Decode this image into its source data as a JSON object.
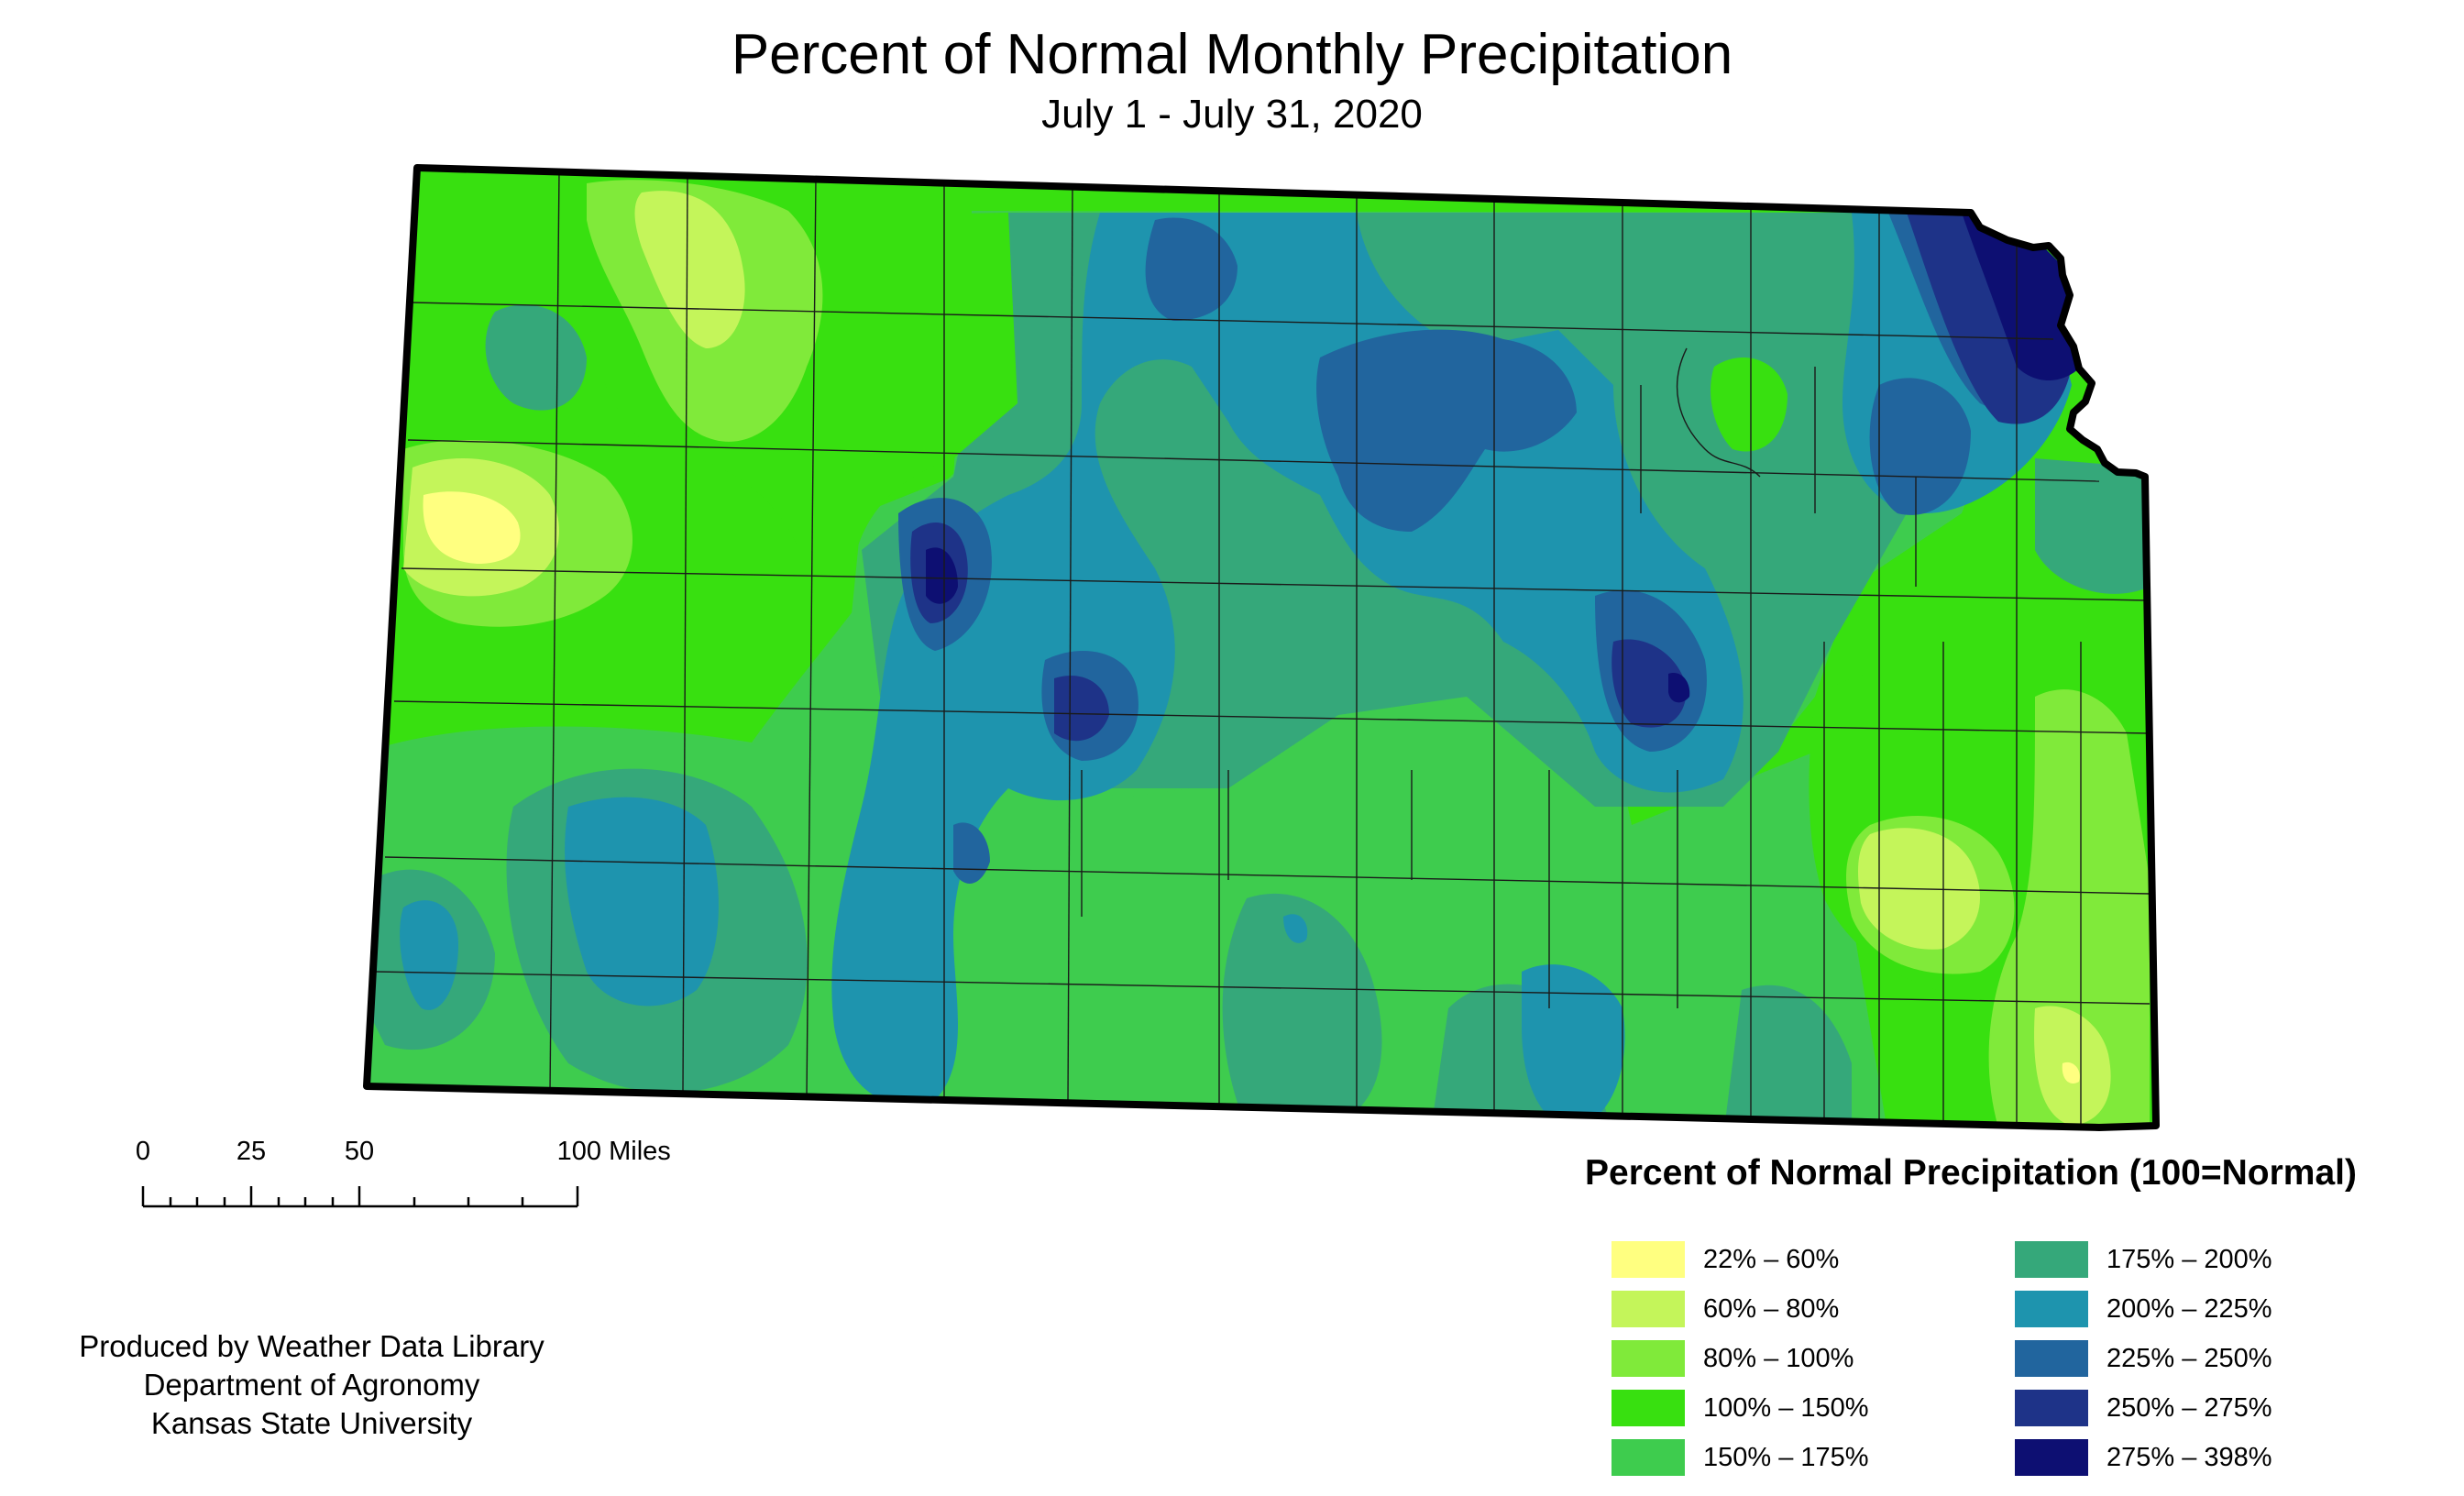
{
  "title": "Percent of Normal Monthly Precipitation",
  "subtitle": "July 1 - July 31, 2020",
  "scale": {
    "labels": [
      "0",
      "25",
      "50",
      "100 Miles"
    ]
  },
  "credit": {
    "line1": "Produced by Weather Data Library",
    "line2": "Department of Agronomy",
    "line3": "Kansas State University"
  },
  "legend": {
    "title": "Percent of Normal Precipitation (100=Normal)",
    "items": [
      {
        "label": "22% – 60%",
        "color": "#FFFF80"
      },
      {
        "label": "60% – 80%",
        "color": "#C4F55A"
      },
      {
        "label": "80% – 100%",
        "color": "#80EA3A"
      },
      {
        "label": "100% – 150%",
        "color": "#38E010"
      },
      {
        "label": "150% – 175%",
        "color": "#3ECC4E"
      },
      {
        "label": "175% – 200%",
        "color": "#35A87A"
      },
      {
        "label": "200% – 225%",
        "color": "#1E94AE"
      },
      {
        "label": "225% – 250%",
        "color": "#21659E"
      },
      {
        "label": "250% – 275%",
        "color": "#1E3388"
      },
      {
        "label": "275% – 398%",
        "color": "#0D0F72"
      }
    ]
  }
}
